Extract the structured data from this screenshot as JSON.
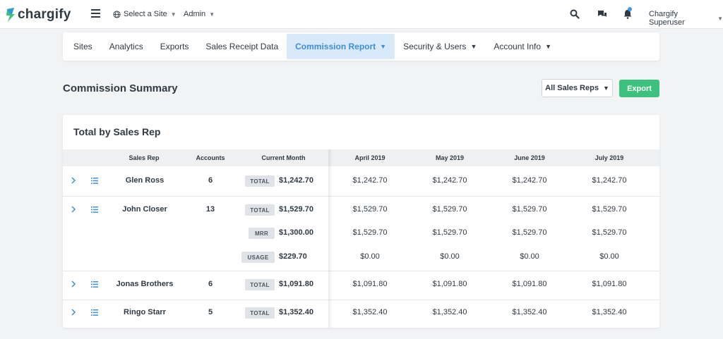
{
  "brand": {
    "name": "chargify",
    "accent": "#3d8fd6",
    "green": "#3cc27c"
  },
  "topbar": {
    "site_select": "Select a Site",
    "admin": "Admin",
    "user": "Chargify Superuser"
  },
  "nav": {
    "items": [
      {
        "label": "Sites"
      },
      {
        "label": "Analytics"
      },
      {
        "label": "Exports"
      },
      {
        "label": "Sales Receipt Data"
      },
      {
        "label": "Commission Report"
      },
      {
        "label": "Security & Users"
      },
      {
        "label": "Account Info"
      }
    ]
  },
  "summary": {
    "title": "Commission Summary",
    "reps_filter": "All Sales Reps",
    "export_label": "Export"
  },
  "table": {
    "title": "Total by Sales Rep",
    "headers": {
      "sales_rep": "Sales Rep",
      "accounts": "Accounts",
      "current_month": "Current Month",
      "m1": "April 2019",
      "m2": "May 2019",
      "m3": "June 2019",
      "m4": "July 2019"
    },
    "rows": [
      {
        "name": "Glen Ross",
        "accounts": "6",
        "lines": [
          {
            "tag": "TOTAL",
            "amount": "$1,242.70",
            "months": [
              "$1,242.70",
              "$1,242.70",
              "$1,242.70",
              "$1,242.70"
            ]
          }
        ]
      },
      {
        "name": "John Closer",
        "accounts": "13",
        "lines": [
          {
            "tag": "TOTAL",
            "amount": "$1,529.70",
            "months": [
              "$1,529.70",
              "$1,529.70",
              "$1,529.70",
              "$1,529.70"
            ]
          },
          {
            "tag": "MRR",
            "amount": "$1,300.00",
            "months": [
              "$1,529.70",
              "$1,529.70",
              "$1,529.70",
              "$1,529.70"
            ]
          },
          {
            "tag": "USAGE",
            "amount": "$229.70",
            "months": [
              "$0.00",
              "$0.00",
              "$0.00",
              "$0.00"
            ]
          }
        ]
      },
      {
        "name": "Jonas Brothers",
        "accounts": "6",
        "lines": [
          {
            "tag": "TOTAL",
            "amount": "$1,091.80",
            "months": [
              "$1,091.80",
              "$1,091.80",
              "$1,091.80",
              "$1,091.80"
            ]
          }
        ]
      },
      {
        "name": "Ringo Starr",
        "accounts": "5",
        "lines": [
          {
            "tag": "TOTAL",
            "amount": "$1,352.40",
            "months": [
              "$1,352.40",
              "$1,352.40",
              "$1,352.40",
              "$1,352.40"
            ]
          }
        ]
      }
    ]
  }
}
